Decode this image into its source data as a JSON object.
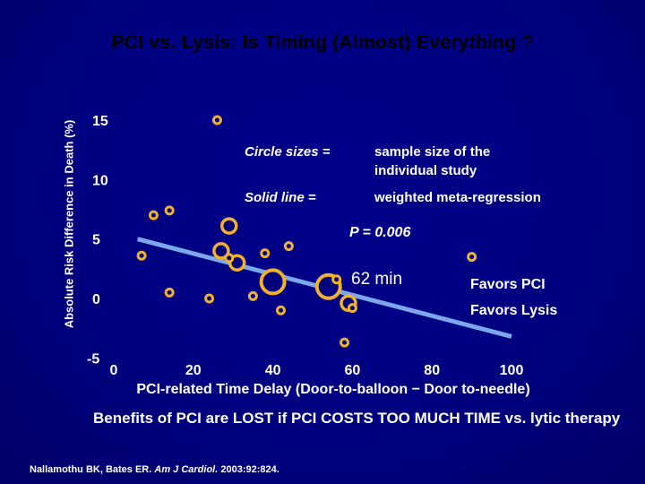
{
  "slide": {
    "title": "PCI vs. Lysis: Is Timing (Almost) Everything ?",
    "benefit_text": "Benefits of PCI are LOST if PCI COSTS TOO MUCH TIME vs. lytic therapy",
    "citation_pre": "Nallamothu BK, Bates ER.",
    "citation_journal": "Am J Cardiol.",
    "citation_post": "2003:92:824."
  },
  "chart_data": {
    "type": "scatter",
    "title": "PCI vs. Lysis: Is Timing (Almost) Everything ?",
    "xlabel": "PCI-related Time Delay (Door-to-balloon − Door to-needle)",
    "ylabel": "Absolute Risk Difference in Death (%)",
    "xlim": [
      0,
      100
    ],
    "ylim": [
      -5,
      15
    ],
    "x_ticks": [
      "0",
      "20",
      "40",
      "60",
      "80",
      "100"
    ],
    "y_ticks": [
      "15",
      "10",
      "5",
      "0",
      "-5"
    ],
    "points": [
      {
        "x": 26,
        "y": 15.0,
        "size": "small"
      },
      {
        "x": 10,
        "y": 7.0,
        "size": "small"
      },
      {
        "x": 14,
        "y": 7.4,
        "size": "small"
      },
      {
        "x": 7,
        "y": 3.6,
        "size": "small"
      },
      {
        "x": 29,
        "y": 6.1,
        "size": "medium"
      },
      {
        "x": 27,
        "y": 4.0,
        "size": "medium"
      },
      {
        "x": 31,
        "y": 3.0,
        "size": "medium"
      },
      {
        "x": 29,
        "y": 3.4,
        "size": "small"
      },
      {
        "x": 38,
        "y": 3.8,
        "size": "small"
      },
      {
        "x": 44,
        "y": 4.4,
        "size": "small"
      },
      {
        "x": 14,
        "y": 0.5,
        "size": "small"
      },
      {
        "x": 24,
        "y": 0.0,
        "size": "small"
      },
      {
        "x": 40,
        "y": 1.4,
        "size": "large"
      },
      {
        "x": 35,
        "y": 0.2,
        "size": "small"
      },
      {
        "x": 42,
        "y": -1.0,
        "size": "small"
      },
      {
        "x": 54,
        "y": 1.0,
        "size": "large"
      },
      {
        "x": 56,
        "y": 1.6,
        "size": "small"
      },
      {
        "x": 59,
        "y": -0.4,
        "size": "medium"
      },
      {
        "x": 60,
        "y": -0.8,
        "size": "small"
      },
      {
        "x": 58,
        "y": -3.7,
        "size": "small"
      },
      {
        "x": 90,
        "y": 3.5,
        "size": "small"
      }
    ],
    "regression_line": {
      "x": [
        6,
        100
      ],
      "y": [
        5.0,
        -3.2
      ]
    },
    "annotations": {
      "circle_label": "Circle sizes =",
      "circle_desc_1": "sample size of the",
      "circle_desc_2": "individual study",
      "line_label": "Solid line =",
      "line_desc": "weighted meta-regression",
      "p_value": "P = 0.006",
      "minutes": "62 min",
      "favors_pci": "Favors PCI",
      "favors_lysis": "Favors Lysis"
    },
    "colors": {
      "marker_stroke": "#f0b030",
      "marker_fill": "#00007a",
      "regression": "#7aa8e8",
      "background": "#000080",
      "title": "#000000",
      "text": "#ffffff"
    },
    "grid": false
  }
}
